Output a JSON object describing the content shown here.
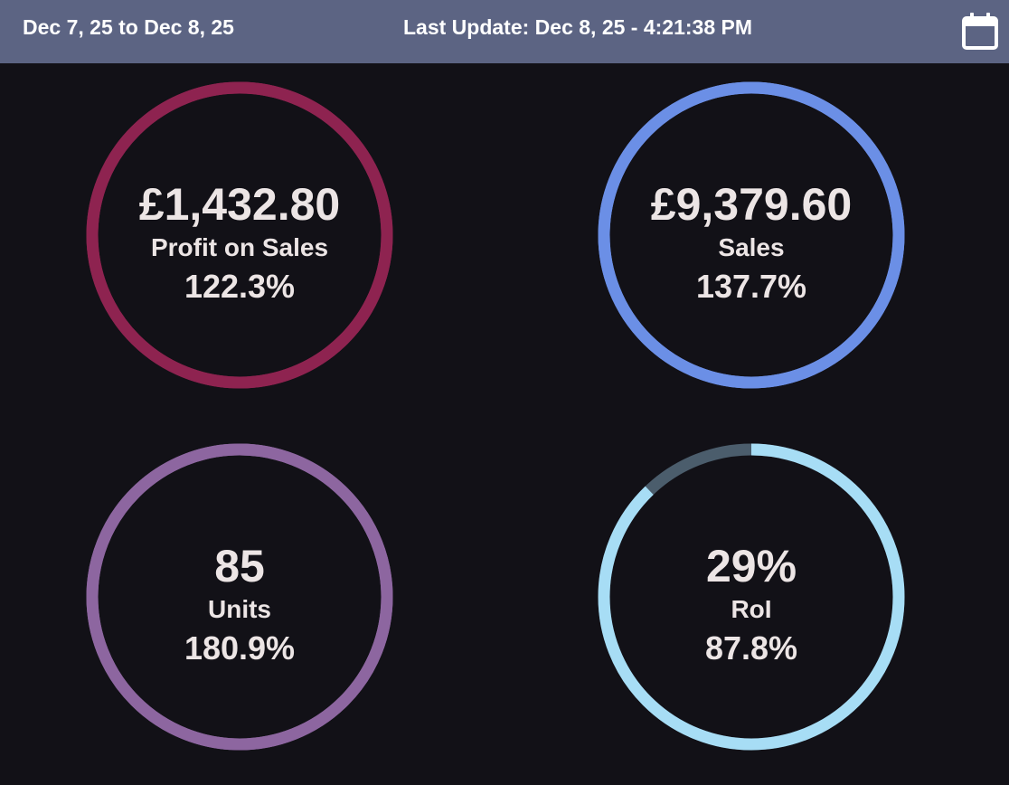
{
  "header": {
    "date_range": "Dec 7, 25 to Dec 8, 25",
    "last_update": "Last Update: Dec 8, 25 - 4:21:38 PM",
    "calendar_icon": "calendar-icon"
  },
  "metrics": [
    {
      "value": "£1,432.80",
      "label": "Profit on Sales",
      "percent": "122.3%",
      "ring_color": "#8e2350",
      "track_color": "#8e2350",
      "fill_fraction": 1.0
    },
    {
      "value": "£9,379.60",
      "label": "Sales",
      "percent": "137.7%",
      "ring_color": "#6b8fe6",
      "track_color": "#6b8fe6",
      "fill_fraction": 1.0
    },
    {
      "value": "85",
      "label": "Units",
      "percent": "180.9%",
      "ring_color": "#8d66a0",
      "track_color": "#8d66a0",
      "fill_fraction": 1.0
    },
    {
      "value": "29%",
      "label": "RoI",
      "percent": "87.8%",
      "ring_color": "#a7ddf5",
      "track_color": "#4b5d6c",
      "fill_fraction": 0.878
    }
  ],
  "colors": {
    "background": "#121117",
    "header_bg": "#5c6483",
    "text": "#ece5e5"
  }
}
